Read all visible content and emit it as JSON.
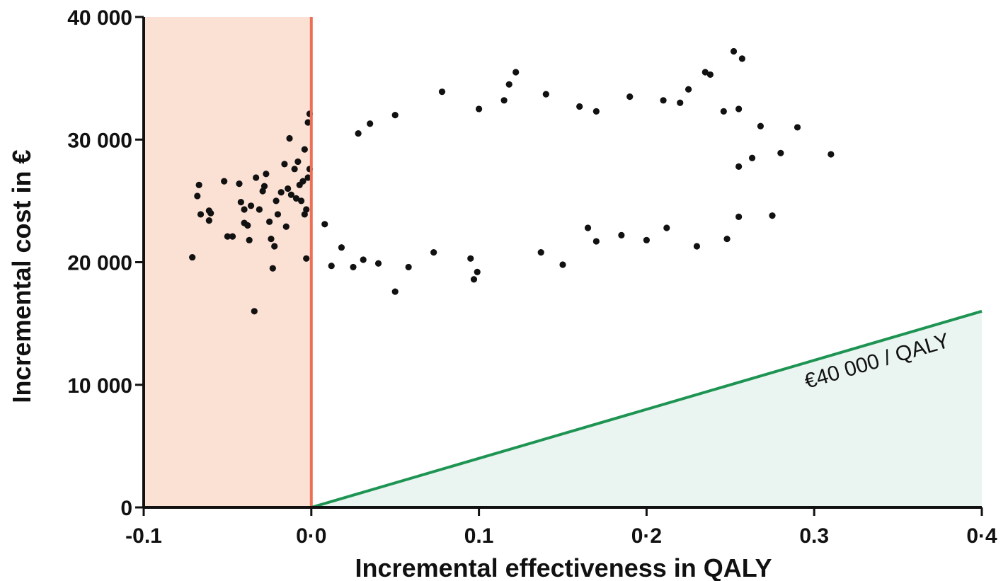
{
  "chart_data": {
    "type": "scatter",
    "xlabel": "Incremental effectiveness in QALY",
    "ylabel": "Incremental cost in €",
    "xlim": [
      -0.1,
      0.4
    ],
    "ylim": [
      0,
      40000
    ],
    "x_ticks": [
      {
        "value": -0.1,
        "label": "-0.1"
      },
      {
        "value": 0.0,
        "label": "0·0"
      },
      {
        "value": 0.1,
        "label": "0.1"
      },
      {
        "value": 0.2,
        "label": "0·2"
      },
      {
        "value": 0.3,
        "label": "0.3"
      },
      {
        "value": 0.4,
        "label": "0·4"
      }
    ],
    "y_ticks": [
      {
        "value": 0,
        "label": "0"
      },
      {
        "value": 10000,
        "label": "10 000"
      },
      {
        "value": 20000,
        "label": "20 000"
      },
      {
        "value": 30000,
        "label": "30 000"
      },
      {
        "value": 40000,
        "label": "40 000"
      }
    ],
    "dominated_region": {
      "x_from": -0.1,
      "x_to": 0.0,
      "fill": "#fbe0d4",
      "line_color": "#ee6f57"
    },
    "threshold": {
      "label": "€40 000 / QALY",
      "wtp_per_qaly": 40000,
      "color": "#1e9453",
      "fill": "#eaf5f1"
    },
    "point_color": "#111111",
    "points": [
      [
        -0.071,
        20400
      ],
      [
        -0.068,
        25400
      ],
      [
        -0.067,
        26300
      ],
      [
        -0.066,
        23900
      ],
      [
        -0.061,
        24200
      ],
      [
        -0.06,
        24000
      ],
      [
        -0.061,
        23400
      ],
      [
        -0.052,
        26600
      ],
      [
        -0.05,
        22100
      ],
      [
        -0.047,
        22100
      ],
      [
        -0.043,
        26400
      ],
      [
        -0.042,
        24900
      ],
      [
        -0.04,
        24300
      ],
      [
        -0.04,
        23200
      ],
      [
        -0.038,
        23000
      ],
      [
        -0.037,
        21800
      ],
      [
        -0.036,
        24600
      ],
      [
        -0.034,
        16000
      ],
      [
        -0.033,
        26900
      ],
      [
        -0.031,
        24300
      ],
      [
        -0.029,
        25800
      ],
      [
        -0.028,
        26200
      ],
      [
        -0.027,
        27200
      ],
      [
        -0.025,
        23300
      ],
      [
        -0.024,
        21900
      ],
      [
        -0.023,
        19500
      ],
      [
        -0.022,
        21300
      ],
      [
        -0.021,
        25000
      ],
      [
        -0.02,
        23900
      ],
      [
        -0.018,
        25700
      ],
      [
        -0.016,
        28000
      ],
      [
        -0.015,
        22900
      ],
      [
        -0.014,
        26000
      ],
      [
        -0.013,
        30100
      ],
      [
        -0.012,
        25500
      ],
      [
        -0.01,
        27600
      ],
      [
        -0.009,
        25200
      ],
      [
        -0.008,
        28200
      ],
      [
        -0.007,
        26300
      ],
      [
        -0.006,
        25000
      ],
      [
        -0.005,
        26600
      ],
      [
        -0.004,
        29200
      ],
      [
        -0.004,
        23900
      ],
      [
        -0.003,
        24300
      ],
      [
        -0.002,
        26900
      ],
      [
        -0.002,
        31400
      ],
      [
        -0.001,
        32100
      ],
      [
        -0.003,
        20300
      ],
      [
        -0.001,
        27600
      ],
      [
        0.05,
        17600
      ],
      [
        0.097,
        18600
      ],
      [
        0.099,
        19200
      ],
      [
        0.008,
        23100
      ],
      [
        0.012,
        19700
      ],
      [
        0.018,
        21200
      ],
      [
        0.025,
        19600
      ],
      [
        0.031,
        20200
      ],
      [
        0.04,
        19900
      ],
      [
        0.058,
        19600
      ],
      [
        0.073,
        20800
      ],
      [
        0.095,
        20300
      ],
      [
        0.137,
        20800
      ],
      [
        0.15,
        19800
      ],
      [
        0.17,
        21700
      ],
      [
        0.2,
        21800
      ],
      [
        0.23,
        21300
      ],
      [
        0.248,
        21900
      ],
      [
        0.165,
        22800
      ],
      [
        0.185,
        22200
      ],
      [
        0.212,
        22800
      ],
      [
        0.255,
        23700
      ],
      [
        0.275,
        23800
      ],
      [
        0.028,
        30500
      ],
      [
        0.035,
        31300
      ],
      [
        0.05,
        32000
      ],
      [
        0.078,
        33900
      ],
      [
        0.1,
        32500
      ],
      [
        0.115,
        33200
      ],
      [
        0.118,
        34500
      ],
      [
        0.122,
        35500
      ],
      [
        0.14,
        33700
      ],
      [
        0.16,
        32700
      ],
      [
        0.17,
        32300
      ],
      [
        0.19,
        33500
      ],
      [
        0.21,
        33200
      ],
      [
        0.22,
        33000
      ],
      [
        0.225,
        34100
      ],
      [
        0.235,
        35500
      ],
      [
        0.238,
        35300
      ],
      [
        0.252,
        37200
      ],
      [
        0.257,
        36600
      ],
      [
        0.246,
        32300
      ],
      [
        0.255,
        32500
      ],
      [
        0.268,
        31100
      ],
      [
        0.29,
        31000
      ],
      [
        0.31,
        28800
      ],
      [
        0.28,
        28900
      ],
      [
        0.263,
        28500
      ],
      [
        0.255,
        27800
      ]
    ]
  }
}
